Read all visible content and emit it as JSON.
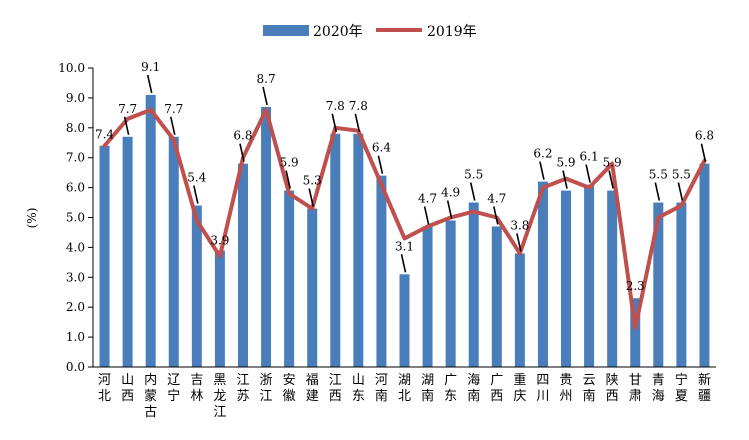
{
  "chart_data": {
    "type": "bar",
    "categories": [
      [
        "河",
        "北"
      ],
      [
        "山",
        "西"
      ],
      [
        "内",
        "蒙",
        "古"
      ],
      [
        "辽",
        "宁"
      ],
      [
        "吉",
        "林"
      ],
      [
        "黑",
        "龙",
        "江"
      ],
      [
        "江",
        "苏"
      ],
      [
        "浙",
        "江"
      ],
      [
        "安",
        "徽"
      ],
      [
        "福",
        "建"
      ],
      [
        "江",
        "西"
      ],
      [
        "山",
        "东"
      ],
      [
        "河",
        "南"
      ],
      [
        "湖",
        "北"
      ],
      [
        "湖",
        "南"
      ],
      [
        "广",
        "东"
      ],
      [
        "海",
        "南"
      ],
      [
        "广",
        "西"
      ],
      [
        "重",
        "庆"
      ],
      [
        "四",
        "川"
      ],
      [
        "贵",
        "州"
      ],
      [
        "云",
        "南"
      ],
      [
        "陕",
        "西"
      ],
      [
        "甘",
        "肃"
      ],
      [
        "青",
        "海"
      ],
      [
        "宁",
        "夏"
      ],
      [
        "新",
        "疆"
      ]
    ],
    "series": [
      {
        "name": "2020年",
        "type": "bar",
        "color": "#4a7ebb",
        "values": [
          7.4,
          7.7,
          9.1,
          7.7,
          5.4,
          3.9,
          6.8,
          8.7,
          5.9,
          5.3,
          7.8,
          7.8,
          6.4,
          3.1,
          4.7,
          4.9,
          5.5,
          4.7,
          3.8,
          6.2,
          5.9,
          6.1,
          5.9,
          2.3,
          5.5,
          5.5,
          6.8
        ]
      },
      {
        "name": "2019年",
        "type": "line",
        "color": "#c0504d",
        "values": [
          7.4,
          8.3,
          8.6,
          7.6,
          4.9,
          3.7,
          7.0,
          8.6,
          5.8,
          5.3,
          8.0,
          7.9,
          6.1,
          4.3,
          4.7,
          5.0,
          5.2,
          5.0,
          3.8,
          6.0,
          6.3,
          6.0,
          6.8,
          1.3,
          5.0,
          5.4,
          6.9
        ]
      }
    ],
    "data_labels": [
      "7.4",
      "7.7",
      "9.1",
      "7.7",
      "5.4",
      "3.9",
      "6.8",
      "8.7",
      "5.9",
      "5.3",
      "7.8",
      "7.8",
      "6.4",
      "3.1",
      "4.7",
      "4.9",
      "5.5",
      "4.7",
      "3.8",
      "6.2",
      "5.9",
      "6.1",
      "5.9",
      "2.3",
      "5.5",
      "5.5",
      "6.8"
    ],
    "ylabel": "(%)",
    "ylim": [
      0,
      10
    ],
    "yticks": [
      "0.0",
      "1.0",
      "2.0",
      "3.0",
      "4.0",
      "5.0",
      "6.0",
      "7.0",
      "8.0",
      "9.0",
      "10.0"
    ],
    "grid": false,
    "legend_position": "top-center"
  }
}
